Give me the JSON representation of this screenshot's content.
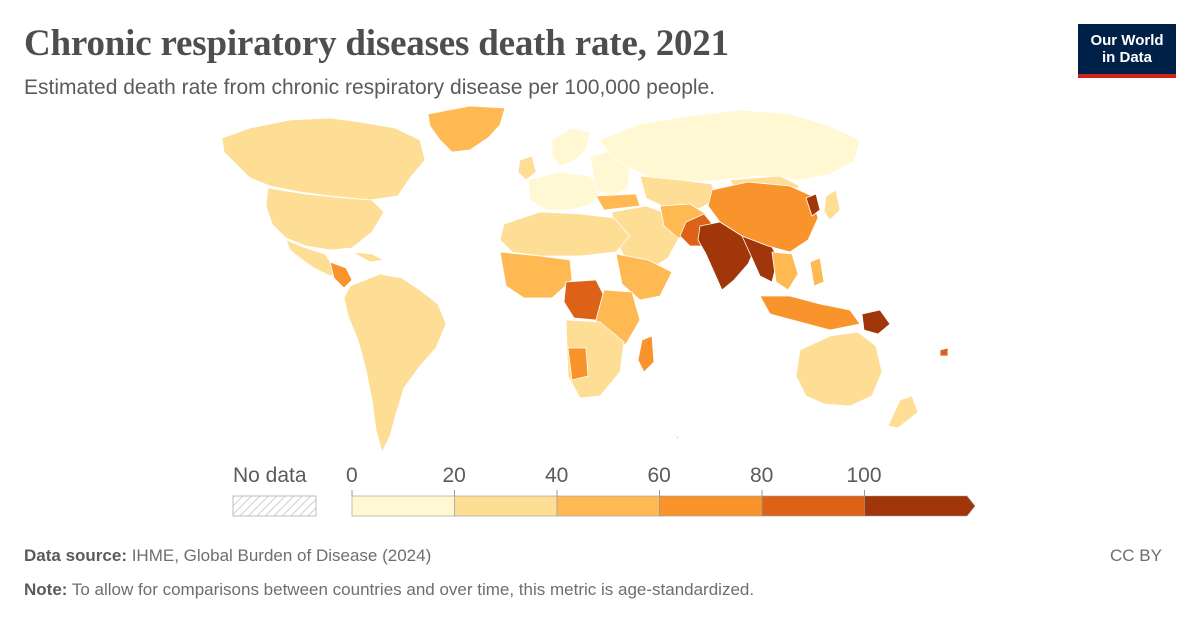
{
  "header": {
    "title": "Chronic respiratory diseases death rate, 2021",
    "subtitle": "Estimated death rate from chronic respiratory disease per 100,000 people."
  },
  "logo": {
    "line1": "Our World",
    "line2": "in Data"
  },
  "legend": {
    "no_data_label": "No data",
    "ticks": [
      "0",
      "20",
      "40",
      "60",
      "80",
      "100"
    ],
    "bins": [
      {
        "from": 0,
        "to": 20,
        "color": "#fff8d2"
      },
      {
        "from": 20,
        "to": 40,
        "color": "#fedd95"
      },
      {
        "from": 40,
        "to": 60,
        "color": "#feb953"
      },
      {
        "from": 60,
        "to": 80,
        "color": "#f8942b"
      },
      {
        "from": 80,
        "to": 100,
        "color": "#dd6217"
      },
      {
        "from": 100,
        "to": null,
        "color": "#a0360a"
      }
    ]
  },
  "footer": {
    "source_label": "Data source:",
    "source_text": " IHME, Global Burden of Disease (2024)",
    "note_label": "Note:",
    "note_text": " To allow for comparisons between countries and over time, this metric is age-standardized.",
    "license": "CC BY"
  }
}
